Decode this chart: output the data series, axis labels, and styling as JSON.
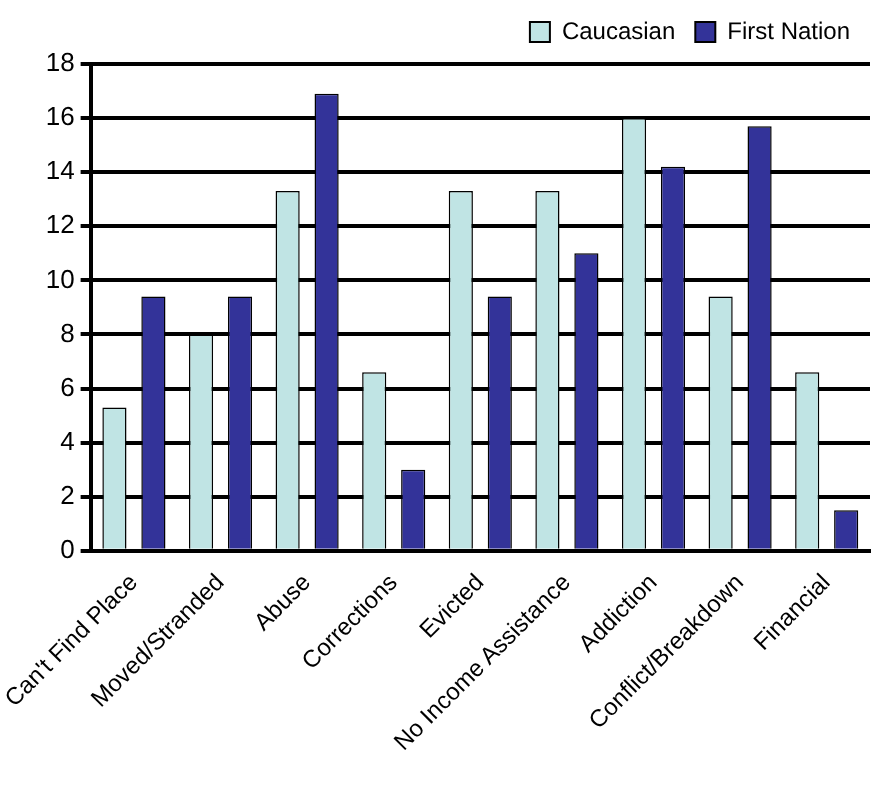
{
  "chart_data": {
    "type": "bar",
    "categories": [
      "Can't Find Place",
      "Moved/Stranded",
      "Abuse",
      "Corrections",
      "Evicted",
      "No Income Assistance",
      "Addiction",
      "Conflict/Breakdown",
      "Financial"
    ],
    "series": [
      {
        "name": "Caucasian",
        "color": "#c0e4e4",
        "values": [
          5.3,
          8.0,
          13.3,
          6.6,
          13.3,
          13.3,
          16.0,
          9.4,
          6.6
        ]
      },
      {
        "name": "First Nation",
        "color": "#333399",
        "values": [
          9.4,
          9.4,
          16.9,
          3.0,
          9.4,
          11.0,
          14.2,
          15.7,
          1.5
        ]
      }
    ],
    "ylim": [
      0,
      18
    ],
    "yticks": [
      0,
      2,
      4,
      6,
      8,
      10,
      12,
      14,
      16,
      18
    ],
    "grid": "y",
    "legend": "top right"
  }
}
